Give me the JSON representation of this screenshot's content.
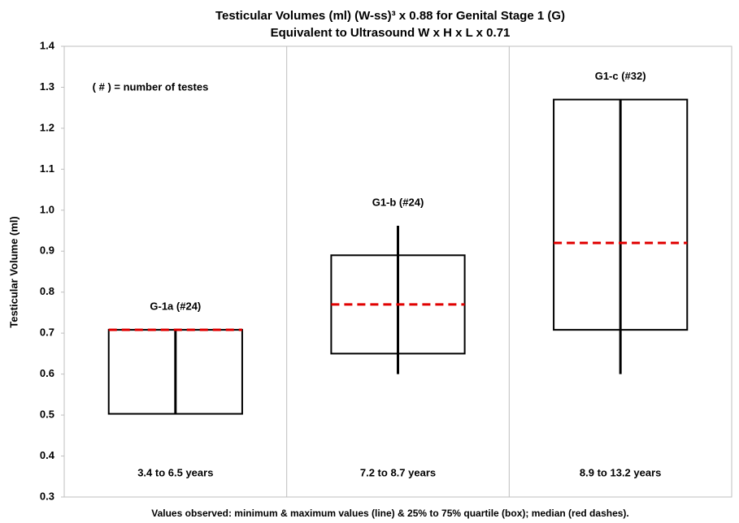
{
  "chart_data": {
    "type": "box",
    "title": "Testicular Volumes (ml) (W-ss)³ x 0.88 for Genital Stage 1 (G)",
    "subtitle": "Equivalent to Ultrasound W x H x L x 0.71",
    "y_label": "Testicular Volume (ml)",
    "annotation": "( # ) = number of testes",
    "footnote": "Values observed: minimum & maximum values (line) & 25% to 75% quartile (box); median (red dashes).",
    "categories": [
      "G-1a (#24)",
      "G1-b (#24)",
      "G1-c (#32)"
    ],
    "age_ranges": [
      "3.4 to 6.5 years",
      "7.2 to 8.7 years",
      "8.9 to 13.2 years"
    ],
    "min": [
      0.503,
      0.6,
      0.6
    ],
    "q1": [
      0.503,
      0.65,
      0.708
    ],
    "median": [
      0.708,
      0.77,
      0.92
    ],
    "q3": [
      0.708,
      0.89,
      1.27
    ],
    "max": [
      0.708,
      0.962,
      1.27
    ],
    "box_color": "#000000",
    "median_color": "#e00000",
    "ylim": [
      0.3,
      1.4
    ],
    "yticks": [
      0.3,
      0.4,
      0.5,
      0.6,
      0.7,
      0.8,
      0.9,
      {
        "value": 1,
        "label": "1.0"
      },
      1.1,
      1.2,
      1.3,
      1.4
    ]
  }
}
